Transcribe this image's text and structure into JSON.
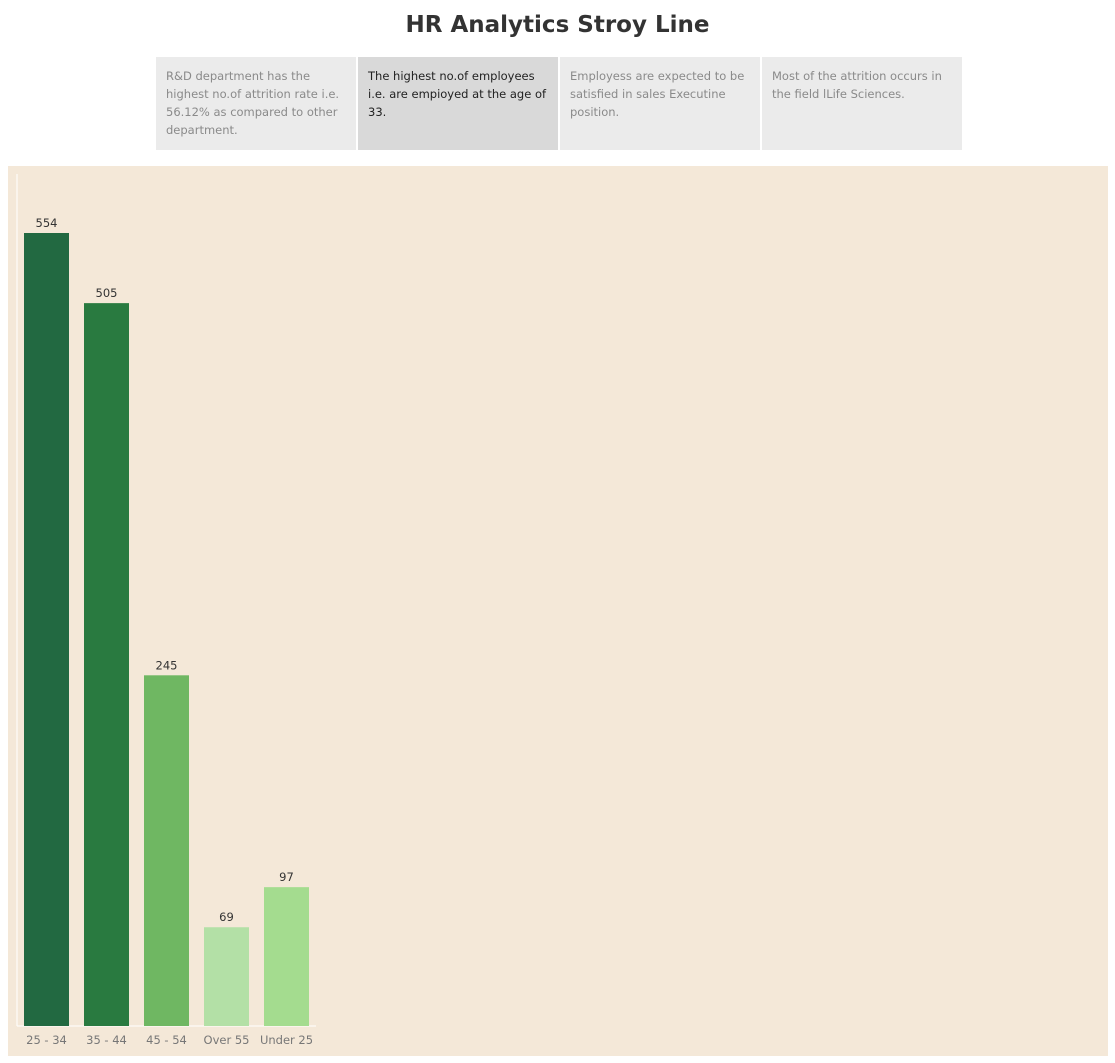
{
  "page": {
    "title": "HR Analytics Stroy Line"
  },
  "story": {
    "tabs": [
      {
        "text": "R&D department has the highest no.of attrition rate i.e. 56.12% as compared to other department.",
        "active": false
      },
      {
        "text": "The highest no.of employees i.e. are empioyed at the age of 33.",
        "active": true
      },
      {
        "text": "Employess are expected to be satisfied in sales Executine position.",
        "active": false
      },
      {
        "text": "Most of the attrition occurs in the field lLife Sciences.",
        "active": false
      }
    ]
  },
  "colors": {
    "panel_background": "#f4e8d8",
    "active_tab": "#d9d9d9",
    "inactive_tab": "#ebebeb"
  },
  "chart_data": {
    "type": "bar",
    "categories": [
      "25 - 34",
      "35 - 44",
      "45 - 54",
      "Over 55",
      "Under 25"
    ],
    "values": [
      554,
      505,
      245,
      69,
      97
    ],
    "colors": [
      "#226941",
      "#297a40",
      "#6fb762",
      "#b3e0a6",
      "#a4dc8f"
    ],
    "data_labels": true,
    "grid": false,
    "title": "",
    "xlabel": "",
    "ylabel": ""
  }
}
